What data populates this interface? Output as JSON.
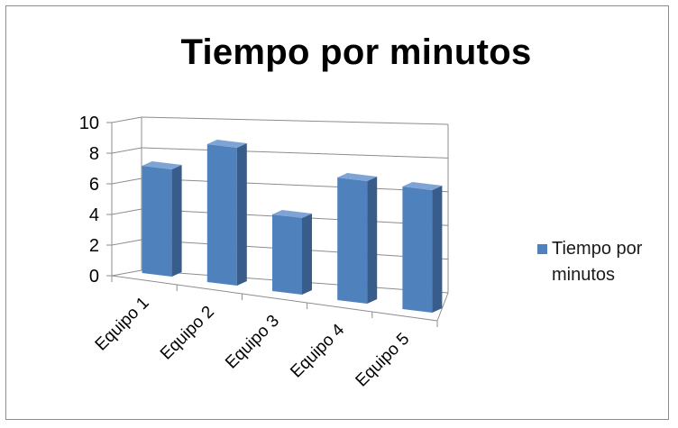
{
  "chart_data": {
    "type": "bar",
    "title": "Tiempo por minutos",
    "categories": [
      "Equipo 1",
      "Equipo 2",
      "Equipo 3",
      "Equipo 4",
      "Equipo 5"
    ],
    "series": [
      {
        "name": "Tiempo por minutos",
        "values": [
          7,
          9,
          5,
          8,
          8
        ]
      }
    ],
    "yticks": [
      "0",
      "2",
      "4",
      "6",
      "8",
      "10"
    ],
    "ylim": [
      0,
      10
    ],
    "grid": true,
    "legend": "right",
    "colors": {
      "bar_front": "#4f81bd",
      "bar_side": "#385d8a",
      "bar_top": "#7ea3d5",
      "gridline": "#8c8c8c",
      "axis": "#8c8c8c"
    }
  }
}
